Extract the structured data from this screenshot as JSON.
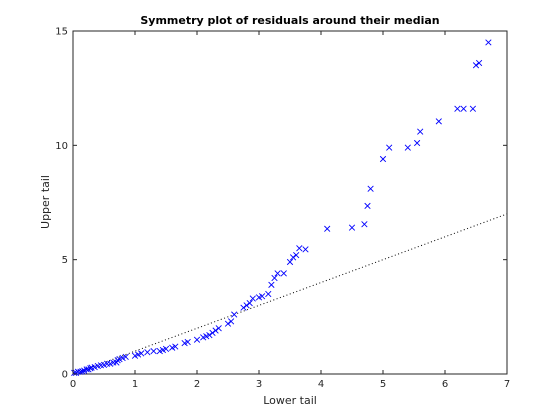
{
  "chart_data": {
    "type": "scatter",
    "title": "Symmetry plot of residuals around their median",
    "xlabel": "Lower tail",
    "ylabel": "Upper tail",
    "xlim": [
      0,
      7
    ],
    "ylim": [
      0,
      15
    ],
    "xticks": [
      0,
      1,
      2,
      3,
      4,
      5,
      6,
      7
    ],
    "yticks": [
      0,
      5,
      10,
      15
    ],
    "grid": false,
    "legend": "none",
    "marker_color": "#0000ff",
    "reference_line": {
      "style": "dotted",
      "color": "#000000",
      "x": [
        0,
        7
      ],
      "y": [
        0,
        7
      ]
    },
    "series": [
      {
        "marker": "x",
        "x": [
          0.02,
          0.05,
          0.08,
          0.12,
          0.15,
          0.18,
          0.22,
          0.25,
          0.28,
          0.3,
          0.35,
          0.4,
          0.45,
          0.5,
          0.55,
          0.6,
          0.65,
          0.7,
          0.72,
          0.75,
          0.8,
          0.85,
          1.0,
          1.05,
          1.1,
          1.2,
          1.3,
          1.4,
          1.45,
          1.5,
          1.6,
          1.65,
          1.8,
          1.85,
          2.0,
          2.1,
          2.15,
          2.2,
          2.25,
          2.3,
          2.35,
          2.5,
          2.55,
          2.6,
          2.75,
          2.8,
          2.85,
          2.9,
          3.0,
          3.05,
          3.15,
          3.2,
          3.25,
          3.3,
          3.4,
          3.5,
          3.55,
          3.6,
          3.65,
          3.75,
          4.1,
          4.5,
          4.7,
          4.75,
          4.8,
          5.0,
          5.1,
          5.4,
          5.55,
          5.6,
          5.9,
          6.2,
          6.3,
          6.45,
          6.5,
          6.55,
          6.7
        ],
        "y": [
          0.05,
          0.05,
          0.1,
          0.1,
          0.12,
          0.15,
          0.2,
          0.2,
          0.25,
          0.28,
          0.3,
          0.35,
          0.38,
          0.4,
          0.45,
          0.45,
          0.5,
          0.5,
          0.6,
          0.65,
          0.7,
          0.75,
          0.8,
          0.85,
          0.9,
          0.95,
          1.0,
          1.0,
          1.05,
          1.1,
          1.15,
          1.2,
          1.35,
          1.4,
          1.5,
          1.6,
          1.65,
          1.7,
          1.8,
          1.9,
          2.0,
          2.2,
          2.3,
          2.6,
          2.9,
          3.0,
          3.1,
          3.3,
          3.35,
          3.4,
          3.5,
          3.9,
          4.2,
          4.4,
          4.4,
          4.9,
          5.1,
          5.2,
          5.5,
          5.45,
          6.35,
          6.4,
          6.55,
          7.35,
          8.1,
          9.4,
          9.9,
          9.9,
          10.1,
          10.6,
          11.05,
          11.6,
          11.6,
          11.6,
          13.5,
          13.6,
          14.5
        ]
      }
    ]
  }
}
